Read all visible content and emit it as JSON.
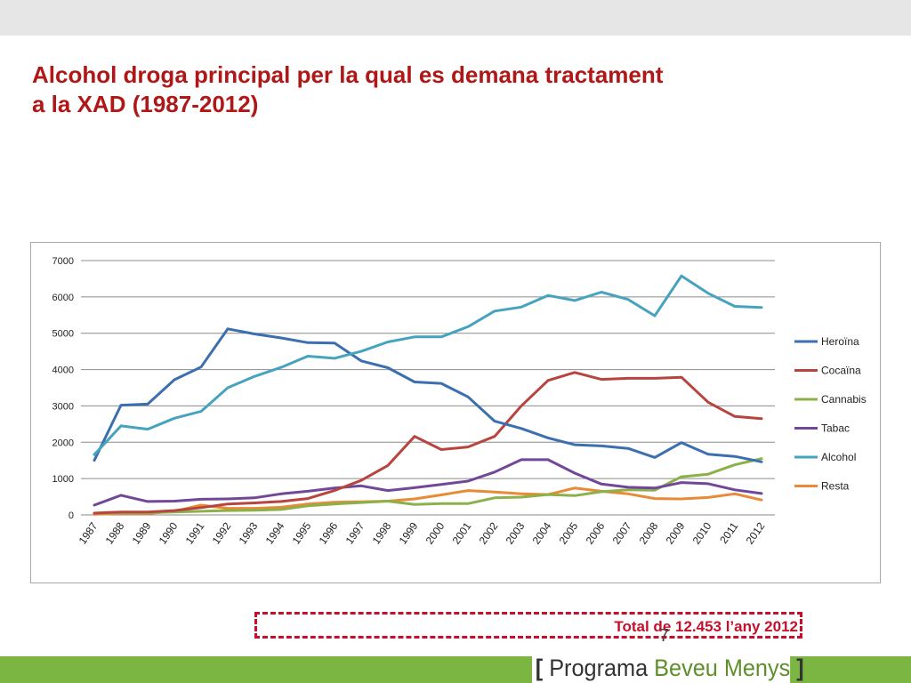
{
  "slide": {
    "title_line1": "Alcohol droga principal per la qual es demana tractament",
    "title_line2": "a la XAD  (1987-2012)",
    "total_text": "Total de 12.453 l’any 2012",
    "page_number": "7",
    "logo": {
      "bracket_open": "[",
      "word1": "Programa",
      "word2": "Beveu Menys",
      "bracket_close": "]"
    }
  },
  "chart_data": {
    "type": "line",
    "x": [
      "1987",
      "1988",
      "1989",
      "1990",
      "1991",
      "1992",
      "1993",
      "1994",
      "1995",
      "1996",
      "1997",
      "1998",
      "1999",
      "2000",
      "2001",
      "2002",
      "2003",
      "2004",
      "2005",
      "2006",
      "2007",
      "2008",
      "2009",
      "2010",
      "2011",
      "2012"
    ],
    "ylim": [
      0,
      7000
    ],
    "yticks": [
      0,
      1000,
      2000,
      3000,
      4000,
      5000,
      6000,
      7000
    ],
    "grid": true,
    "legend_position": "right",
    "series": [
      {
        "name": "Heroïna",
        "color": "#3c6fb0",
        "values": [
          1500,
          3020,
          3050,
          3720,
          4070,
          5120,
          4980,
          4870,
          4740,
          4730,
          4240,
          4050,
          3660,
          3620,
          3250,
          2580,
          2380,
          2120,
          1930,
          1900,
          1830,
          1580,
          1990,
          1670,
          1610,
          1460
        ]
      },
      {
        "name": "Cocaïna",
        "color": "#b8443f",
        "values": [
          50,
          80,
          80,
          120,
          200,
          300,
          330,
          370,
          450,
          670,
          950,
          1360,
          2160,
          1800,
          1870,
          2160,
          3000,
          3700,
          3920,
          3730,
          3760,
          3760,
          3790,
          3100,
          2710,
          2650
        ]
      },
      {
        "name": "Cannabis",
        "color": "#8cb04a",
        "values": [
          50,
          60,
          60,
          80,
          100,
          120,
          130,
          150,
          250,
          300,
          340,
          380,
          290,
          310,
          310,
          470,
          490,
          560,
          530,
          640,
          690,
          680,
          1050,
          1120,
          1380,
          1550
        ]
      },
      {
        "name": "Tabac",
        "color": "#71479a",
        "values": [
          270,
          540,
          370,
          380,
          430,
          440,
          470,
          580,
          650,
          740,
          800,
          670,
          750,
          840,
          930,
          1180,
          1520,
          1520,
          1150,
          850,
          760,
          740,
          890,
          860,
          690,
          590
        ]
      },
      {
        "name": "Alcohol",
        "color": "#46a3c0",
        "values": [
          1660,
          2450,
          2360,
          2660,
          2850,
          3500,
          3810,
          4060,
          4370,
          4310,
          4500,
          4760,
          4900,
          4900,
          5180,
          5610,
          5720,
          6040,
          5900,
          6130,
          5930,
          5480,
          6580,
          6100,
          5740,
          5710
        ]
      },
      {
        "name": "Resta",
        "color": "#e88a36",
        "values": [
          20,
          40,
          40,
          100,
          270,
          180,
          180,
          210,
          300,
          350,
          360,
          380,
          440,
          550,
          670,
          630,
          580,
          560,
          740,
          650,
          580,
          450,
          440,
          480,
          580,
          410
        ]
      }
    ]
  }
}
